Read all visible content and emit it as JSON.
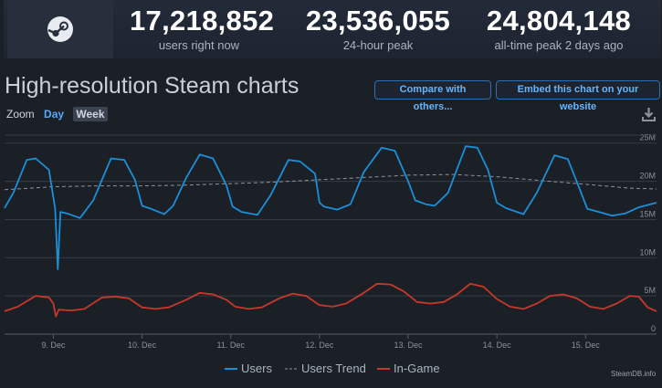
{
  "stats": [
    {
      "value": "17,218,852",
      "label": "users right now"
    },
    {
      "value": "23,536,055",
      "label": "24-hour peak"
    },
    {
      "value": "24,804,148",
      "label": "all-time peak 2 days ago"
    }
  ],
  "logo_icon": "steam-logo-icon",
  "title": "High-resolution Steam charts",
  "buttons": {
    "compare": "Compare with others...",
    "embed": "Embed this chart on your website"
  },
  "zoom": {
    "label": "Zoom",
    "options": [
      "Day",
      "Week"
    ],
    "selected": "Week"
  },
  "download_icon": "download-icon",
  "credit": "SteamDB.info",
  "chart_data": {
    "type": "line",
    "x_unit": "days (December, fractional)",
    "xlim": [
      8.45,
      15.8
    ],
    "ylim": [
      0,
      27
    ],
    "y_unit": "millions",
    "grid": true,
    "x_tick_labels": [
      {
        "x": 9,
        "label": "9. Dec"
      },
      {
        "x": 10,
        "label": "10. Dec"
      },
      {
        "x": 11,
        "label": "11. Dec"
      },
      {
        "x": 12,
        "label": "12. Dec"
      },
      {
        "x": 13,
        "label": "13. Dec"
      },
      {
        "x": 14,
        "label": "14. Dec"
      },
      {
        "x": 15,
        "label": "15. Dec"
      }
    ],
    "y_tick_labels": [
      {
        "y": 0,
        "label": "0"
      },
      {
        "y": 5,
        "label": "5M"
      },
      {
        "y": 10,
        "label": "10M"
      },
      {
        "y": 15,
        "label": "15M"
      },
      {
        "y": 20,
        "label": "20M"
      },
      {
        "y": 25,
        "label": "25M"
      }
    ],
    "legend_position": "bottom-center",
    "series": [
      {
        "name": "Users",
        "color": "#1b8fd8",
        "style": "solid",
        "points": [
          [
            8.45,
            16.5
          ],
          [
            8.55,
            18.5
          ],
          [
            8.7,
            22.8
          ],
          [
            8.8,
            23.0
          ],
          [
            8.95,
            21.5
          ],
          [
            9.02,
            16.4
          ],
          [
            9.05,
            8.5
          ],
          [
            9.08,
            16.0
          ],
          [
            9.15,
            15.8
          ],
          [
            9.3,
            15.2
          ],
          [
            9.45,
            17.5
          ],
          [
            9.65,
            23.0
          ],
          [
            9.8,
            22.8
          ],
          [
            9.92,
            20.2
          ],
          [
            10.0,
            16.8
          ],
          [
            10.1,
            16.4
          ],
          [
            10.25,
            15.7
          ],
          [
            10.35,
            16.8
          ],
          [
            10.5,
            20.5
          ],
          [
            10.65,
            23.5
          ],
          [
            10.8,
            23.0
          ],
          [
            10.95,
            19.5
          ],
          [
            11.02,
            16.7
          ],
          [
            11.12,
            16.0
          ],
          [
            11.3,
            15.6
          ],
          [
            11.45,
            18.2
          ],
          [
            11.65,
            22.8
          ],
          [
            11.78,
            22.6
          ],
          [
            11.95,
            21.0
          ],
          [
            12.0,
            17.2
          ],
          [
            12.05,
            16.7
          ],
          [
            12.2,
            16.3
          ],
          [
            12.35,
            17.0
          ],
          [
            12.5,
            21.2
          ],
          [
            12.7,
            24.4
          ],
          [
            12.85,
            24.0
          ],
          [
            13.0,
            20.0
          ],
          [
            13.08,
            17.5
          ],
          [
            13.2,
            17.0
          ],
          [
            13.3,
            16.8
          ],
          [
            13.45,
            18.5
          ],
          [
            13.65,
            24.6
          ],
          [
            13.78,
            24.4
          ],
          [
            13.9,
            21.5
          ],
          [
            14.0,
            17.2
          ],
          [
            14.1,
            16.5
          ],
          [
            14.3,
            15.7
          ],
          [
            14.45,
            18.5
          ],
          [
            14.65,
            23.4
          ],
          [
            14.8,
            22.9
          ],
          [
            14.95,
            18.5
          ],
          [
            15.02,
            16.4
          ],
          [
            15.15,
            16.0
          ],
          [
            15.3,
            15.5
          ],
          [
            15.45,
            15.8
          ],
          [
            15.6,
            16.6
          ],
          [
            15.8,
            17.2
          ]
        ]
      },
      {
        "name": "Users Trend",
        "color": "#8c95a0",
        "style": "dashed",
        "points": [
          [
            8.45,
            18.9
          ],
          [
            9.0,
            19.3
          ],
          [
            9.5,
            19.4
          ],
          [
            10.0,
            19.4
          ],
          [
            10.5,
            19.5
          ],
          [
            11.0,
            19.7
          ],
          [
            11.5,
            19.9
          ],
          [
            12.0,
            20.2
          ],
          [
            12.5,
            20.5
          ],
          [
            13.0,
            20.8
          ],
          [
            13.5,
            20.9
          ],
          [
            14.0,
            20.6
          ],
          [
            14.5,
            20.1
          ],
          [
            15.0,
            19.6
          ],
          [
            15.5,
            19.1
          ],
          [
            15.8,
            19.0
          ]
        ]
      },
      {
        "name": "In-Game",
        "color": "#c8382a",
        "style": "solid",
        "points": [
          [
            8.45,
            3.0
          ],
          [
            8.6,
            3.6
          ],
          [
            8.8,
            5.0
          ],
          [
            8.95,
            4.8
          ],
          [
            9.0,
            4.0
          ],
          [
            9.03,
            2.3
          ],
          [
            9.06,
            3.2
          ],
          [
            9.2,
            3.1
          ],
          [
            9.35,
            3.3
          ],
          [
            9.55,
            4.8
          ],
          [
            9.7,
            4.9
          ],
          [
            9.85,
            4.7
          ],
          [
            10.0,
            3.5
          ],
          [
            10.15,
            3.3
          ],
          [
            10.3,
            3.5
          ],
          [
            10.5,
            4.5
          ],
          [
            10.65,
            5.4
          ],
          [
            10.8,
            5.2
          ],
          [
            10.95,
            4.5
          ],
          [
            11.05,
            3.6
          ],
          [
            11.2,
            3.3
          ],
          [
            11.35,
            3.5
          ],
          [
            11.55,
            4.7
          ],
          [
            11.7,
            5.3
          ],
          [
            11.85,
            5.0
          ],
          [
            12.0,
            3.8
          ],
          [
            12.15,
            3.6
          ],
          [
            12.3,
            4.0
          ],
          [
            12.5,
            5.4
          ],
          [
            12.65,
            6.6
          ],
          [
            12.8,
            6.5
          ],
          [
            12.95,
            5.6
          ],
          [
            13.1,
            4.2
          ],
          [
            13.25,
            4.0
          ],
          [
            13.4,
            4.2
          ],
          [
            13.55,
            5.2
          ],
          [
            13.7,
            6.6
          ],
          [
            13.85,
            6.2
          ],
          [
            14.0,
            4.6
          ],
          [
            14.15,
            3.6
          ],
          [
            14.3,
            3.3
          ],
          [
            14.45,
            4.0
          ],
          [
            14.6,
            5.0
          ],
          [
            14.75,
            5.2
          ],
          [
            14.9,
            4.7
          ],
          [
            15.05,
            3.6
          ],
          [
            15.2,
            3.3
          ],
          [
            15.35,
            4.0
          ],
          [
            15.5,
            5.0
          ],
          [
            15.6,
            4.9
          ],
          [
            15.7,
            3.5
          ],
          [
            15.8,
            3.0
          ]
        ]
      }
    ]
  }
}
